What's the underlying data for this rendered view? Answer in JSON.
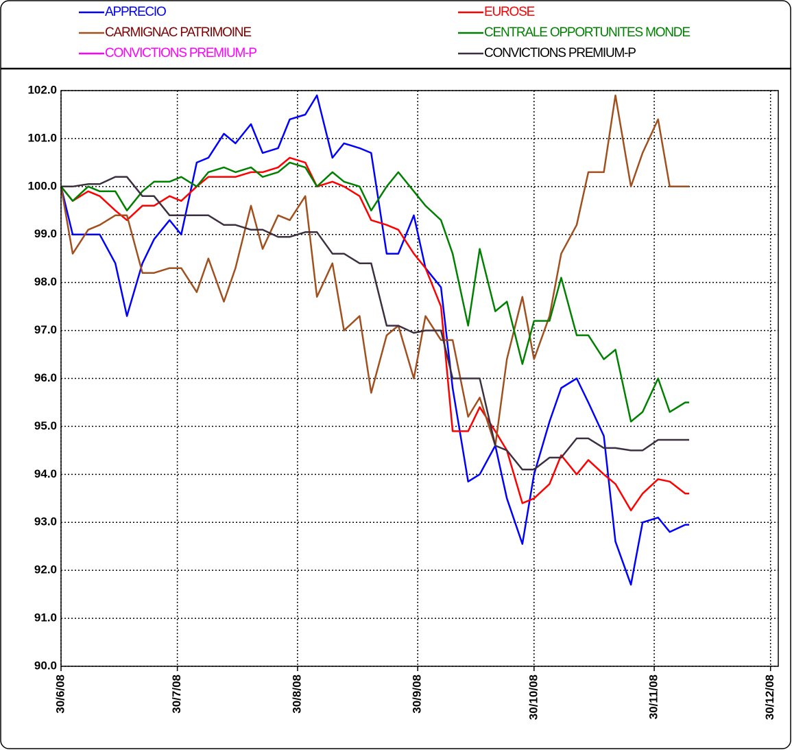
{
  "chart_data": {
    "type": "line",
    "legend": "top",
    "grid": true,
    "x": [
      "2008-06-30",
      "2008-07-03",
      "2008-07-07",
      "2008-07-10",
      "2008-07-14",
      "2008-07-17",
      "2008-07-21",
      "2008-07-24",
      "2008-07-28",
      "2008-07-31",
      "2008-08-04",
      "2008-08-07",
      "2008-08-11",
      "2008-08-14",
      "2008-08-18",
      "2008-08-21",
      "2008-08-25",
      "2008-08-28",
      "2008-09-01",
      "2008-09-04",
      "2008-09-08",
      "2008-09-11",
      "2008-09-15",
      "2008-09-18",
      "2008-09-22",
      "2008-09-25",
      "2008-09-29",
      "2008-10-02",
      "2008-10-06",
      "2008-10-09",
      "2008-10-13",
      "2008-10-16",
      "2008-10-20",
      "2008-10-23",
      "2008-10-27",
      "2008-10-30",
      "2008-11-03",
      "2008-11-06",
      "2008-11-10",
      "2008-11-13",
      "2008-11-17",
      "2008-11-20",
      "2008-11-24",
      "2008-11-27",
      "2008-12-01",
      "2008-12-04",
      "2008-12-08",
      "2008-12-09"
    ],
    "xlim": [
      "2008-06-30",
      "2009-01-01"
    ],
    "xticks": [
      {
        "value": "2008-06-30",
        "label": "30/6/08"
      },
      {
        "value": "2008-07-30",
        "label": "30/7/08"
      },
      {
        "value": "2008-08-30",
        "label": "30/8/08"
      },
      {
        "value": "2008-09-30",
        "label": "30/9/08"
      },
      {
        "value": "2008-10-30",
        "label": "30/10/08"
      },
      {
        "value": "2008-11-30",
        "label": "30/11/08"
      },
      {
        "value": "2008-12-30",
        "label": "30/12/08"
      }
    ],
    "ylim": [
      90,
      102
    ],
    "yticks": [
      {
        "value": 90,
        "label": "90.0"
      },
      {
        "value": 91,
        "label": "91.0"
      },
      {
        "value": 92,
        "label": "92.0"
      },
      {
        "value": 93,
        "label": "93.0"
      },
      {
        "value": 94,
        "label": "94.0"
      },
      {
        "value": 95,
        "label": "95.0"
      },
      {
        "value": 96,
        "label": "96.0"
      },
      {
        "value": 97,
        "label": "97.0"
      },
      {
        "value": 98,
        "label": "98.0"
      },
      {
        "value": 99,
        "label": "99.0"
      },
      {
        "value": 100,
        "label": "100.0"
      },
      {
        "value": 101,
        "label": "101.0"
      },
      {
        "value": 102,
        "label": "102.0"
      }
    ],
    "series": [
      {
        "name": "APPRECIO",
        "color": "#0000ff",
        "values": [
          100,
          99.0,
          99.0,
          99.0,
          98.4,
          97.3,
          98.4,
          98.9,
          99.3,
          99.0,
          100.5,
          100.6,
          101.1,
          100.9,
          101.3,
          100.7,
          100.8,
          101.4,
          101.5,
          101.9,
          100.6,
          100.9,
          100.8,
          100.7,
          98.6,
          98.6,
          99.4,
          98.3,
          97.9,
          95.8,
          93.85,
          94.0,
          94.6,
          93.5,
          92.55,
          94.0,
          95.1,
          95.8,
          96.0,
          95.5,
          94.8,
          92.6,
          91.7,
          93.0,
          93.1,
          92.8,
          92.95,
          92.95
        ]
      },
      {
        "name": "EUROSE",
        "color": "#ff0000",
        "values": [
          100,
          99.7,
          99.9,
          99.8,
          99.5,
          99.3,
          99.6,
          99.6,
          99.8,
          99.7,
          100.0,
          100.2,
          100.2,
          100.2,
          100.3,
          100.3,
          100.4,
          100.6,
          100.5,
          100.0,
          100.1,
          100.0,
          99.8,
          99.3,
          99.2,
          99.1,
          98.6,
          98.3,
          97.5,
          94.9,
          94.9,
          95.4,
          94.9,
          94.5,
          93.4,
          93.5,
          93.8,
          94.4,
          94.0,
          94.3,
          94.0,
          93.8,
          93.25,
          93.6,
          93.9,
          93.85,
          93.6,
          93.6
        ]
      },
      {
        "name": "CARMIGNAC PATRIMOINE",
        "color": "#a0501e",
        "values": [
          100,
          98.6,
          99.1,
          99.2,
          99.4,
          99.4,
          98.2,
          98.2,
          98.3,
          98.3,
          97.8,
          98.5,
          97.6,
          98.3,
          99.6,
          98.7,
          99.4,
          99.3,
          99.8,
          97.7,
          98.4,
          97.0,
          97.3,
          95.7,
          96.9,
          97.1,
          96.0,
          97.3,
          96.8,
          96.8,
          95.2,
          95.6,
          94.6,
          96.4,
          97.7,
          96.4,
          97.3,
          98.6,
          99.2,
          100.3,
          100.3,
          101.9,
          100.0,
          100.7,
          101.4,
          100.0,
          100.0,
          100.0
        ]
      },
      {
        "name": "CENTRALE OPPORTUNITES MONDE",
        "color": "#008000",
        "values": [
          100,
          99.7,
          100.0,
          99.9,
          99.9,
          99.5,
          99.9,
          100.1,
          100.1,
          100.2,
          100.0,
          100.3,
          100.4,
          100.3,
          100.4,
          100.2,
          100.3,
          100.5,
          100.4,
          100.0,
          100.3,
          100.1,
          100.0,
          99.5,
          100.0,
          100.3,
          99.9,
          99.6,
          99.3,
          98.6,
          97.1,
          98.7,
          97.4,
          97.6,
          96.3,
          97.2,
          97.2,
          98.1,
          96.9,
          96.9,
          96.4,
          96.6,
          95.1,
          95.3,
          96.0,
          95.3,
          95.5,
          95.5
        ]
      },
      {
        "name": "CONVICTIONS PREMIUM-P",
        "color": "#ff00ff",
        "values": [
          null,
          null,
          null,
          null,
          null,
          null,
          null,
          null,
          null,
          null,
          null,
          null,
          null,
          null,
          null,
          null,
          null,
          null,
          null,
          null,
          null,
          null,
          null,
          null,
          null,
          null,
          null,
          null,
          null,
          null,
          null,
          null,
          null,
          null,
          null,
          null,
          null,
          null,
          null,
          null,
          null,
          null,
          null,
          null,
          null,
          null,
          null,
          null
        ]
      },
      {
        "name": "CONVICTIONS PREMIUM-P",
        "color": "#3c3040",
        "values": [
          100,
          100,
          100.05,
          100.05,
          100.2,
          100.2,
          99.8,
          99.8,
          99.4,
          99.4,
          99.4,
          99.4,
          99.2,
          99.2,
          99.1,
          99.1,
          98.95,
          98.95,
          99.05,
          99.05,
          98.6,
          98.6,
          98.4,
          98.4,
          97.1,
          97.1,
          96.95,
          97.0,
          97.0,
          96.0,
          96.0,
          96.0,
          94.6,
          94.5,
          94.1,
          94.1,
          94.35,
          94.35,
          94.75,
          94.75,
          94.55,
          94.55,
          94.5,
          94.5,
          94.72,
          94.72,
          94.72,
          94.72
        ]
      }
    ]
  }
}
